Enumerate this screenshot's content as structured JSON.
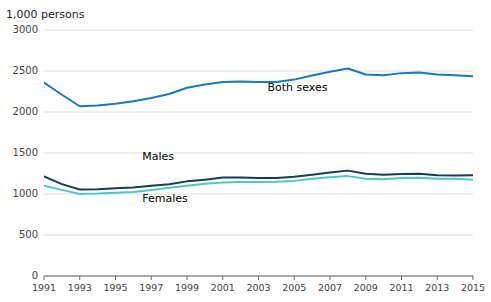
{
  "chart_data": {
    "type": "line",
    "ylabel": "1,000 persons",
    "x": [
      1991,
      1992,
      1993,
      1994,
      1995,
      1996,
      1997,
      1998,
      1999,
      2000,
      2001,
      2002,
      2003,
      2004,
      2005,
      2006,
      2007,
      2008,
      2009,
      2010,
      2011,
      2012,
      2013,
      2014,
      2015
    ],
    "series": [
      {
        "color": "#1a7ab5",
        "values": [
          2360,
          2210,
          2070,
          2080,
          2100,
          2130,
          2170,
          2220,
          2296,
          2335,
          2367,
          2372,
          2365,
          2365,
          2395,
          2444,
          2492,
          2531,
          2457,
          2447,
          2474,
          2483,
          2457,
          2447,
          2437
        ]
      },
      {
        "color": "#1a3a5c",
        "values": [
          1215,
          1120,
          1055,
          1058,
          1070,
          1080,
          1100,
          1120,
          1154,
          1175,
          1200,
          1200,
          1195,
          1195,
          1210,
          1235,
          1262,
          1285,
          1248,
          1235,
          1245,
          1248,
          1230,
          1225,
          1230
        ]
      },
      {
        "color": "#4ec8c0",
        "values": [
          1100,
          1050,
          1000,
          1005,
          1015,
          1025,
          1050,
          1075,
          1100,
          1125,
          1140,
          1145,
          1145,
          1148,
          1160,
          1185,
          1205,
          1218,
          1185,
          1180,
          1195,
          1198,
          1185,
          1185,
          1175
        ]
      }
    ],
    "annotations": [
      {
        "text": "Both sexes",
        "x": 2003.5,
        "y": 2230
      },
      {
        "text": "Males",
        "x": 1996.5,
        "y": 1385
      },
      {
        "text": "Females",
        "x": 1996.5,
        "y": 880
      }
    ],
    "xlim": [
      1991,
      2015
    ],
    "xticks": [
      1991,
      1993,
      1995,
      1997,
      1999,
      2001,
      2003,
      2005,
      2007,
      2009,
      2011,
      2013,
      2015
    ],
    "ylim": [
      0,
      3000
    ],
    "yticks": [
      0,
      500,
      1000,
      1500,
      2000,
      2500,
      3000
    ],
    "grid": true
  }
}
